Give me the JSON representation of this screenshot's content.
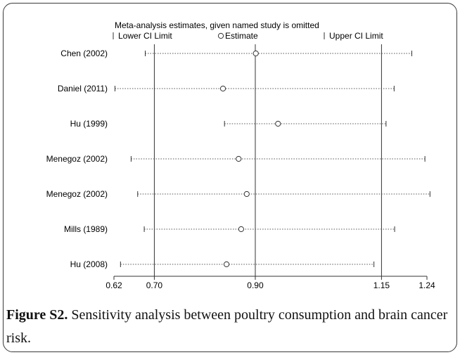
{
  "chart_data": {
    "type": "scatter",
    "title": "Meta-analysis estimates, given named study is omitted",
    "legend": {
      "lower": "Lower CI Limit",
      "estimate": "Estimate",
      "upper": "Upper CI Limit"
    },
    "studies": [
      {
        "name": "Chen (2002)",
        "estimate": 0.901,
        "lower": 0.682,
        "upper": 1.21
      },
      {
        "name": "Daniel (2011)",
        "estimate": 0.836,
        "lower": 0.622,
        "upper": 1.175
      },
      {
        "name": "Hu (1999)",
        "estimate": 0.945,
        "lower": 0.839,
        "upper": 1.159
      },
      {
        "name": "Menegoz (2002)",
        "estimate": 0.867,
        "lower": 0.654,
        "upper": 1.236
      },
      {
        "name": "Menegoz (2002)",
        "estimate": 0.883,
        "lower": 0.667,
        "upper": 1.246
      },
      {
        "name": "Mills (1989)",
        "estimate": 0.872,
        "lower": 0.68,
        "upper": 1.176
      },
      {
        "name": "Hu (2008)",
        "estimate": 0.843,
        "lower": 0.633,
        "upper": 1.135
      }
    ],
    "ticks": [
      "0.62",
      "0.70",
      "0.90",
      "1.15",
      "1.24"
    ],
    "reference_lines": [
      0.7,
      0.9,
      1.15
    ],
    "xlim": [
      0.62,
      1.24
    ],
    "grid": false
  },
  "caption": {
    "label": "Figure S2.",
    "text": " Sensitivity analysis between poultry consumption and brain cancer risk."
  }
}
